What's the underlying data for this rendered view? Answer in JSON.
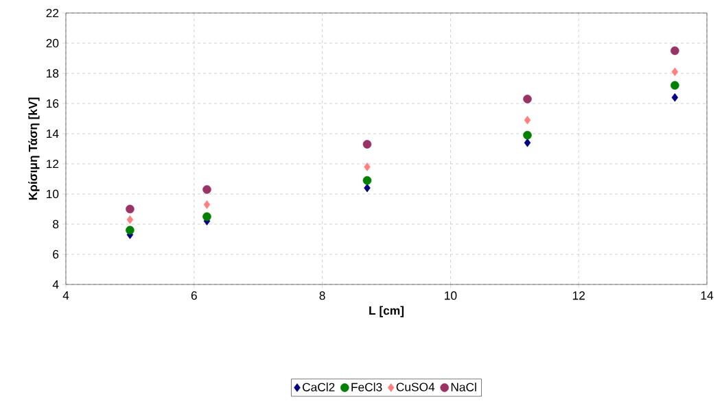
{
  "chart_data": {
    "type": "scatter",
    "xlabel": "L  [cm]",
    "ylabel": "Κρίσιμη Τάση  [kV]",
    "xlim": [
      4,
      14
    ],
    "ylim": [
      4,
      22
    ],
    "xticks": [
      4,
      6,
      8,
      10,
      12,
      14
    ],
    "yticks": [
      4,
      6,
      8,
      10,
      12,
      14,
      16,
      18,
      20,
      22
    ],
    "grid": true,
    "legend": "bottom",
    "x": [
      5,
      6.2,
      8.7,
      11.2,
      13.5
    ],
    "series": [
      {
        "name": "CaCl2",
        "color": "#000080",
        "marker": "diamond",
        "values": [
          7.3,
          8.2,
          10.4,
          13.4,
          16.4
        ]
      },
      {
        "name": "FeCl3",
        "color": "#008000",
        "marker": "circle",
        "values": [
          7.6,
          8.5,
          10.9,
          13.9,
          17.2
        ]
      },
      {
        "name": "CuSO4",
        "color": "#ff8080",
        "marker": "diamond",
        "values": [
          8.3,
          9.3,
          11.8,
          14.9,
          18.1
        ]
      },
      {
        "name": "NaCl",
        "color": "#993366",
        "marker": "circle",
        "values": [
          9.0,
          10.3,
          13.3,
          16.3,
          19.5
        ]
      }
    ]
  }
}
